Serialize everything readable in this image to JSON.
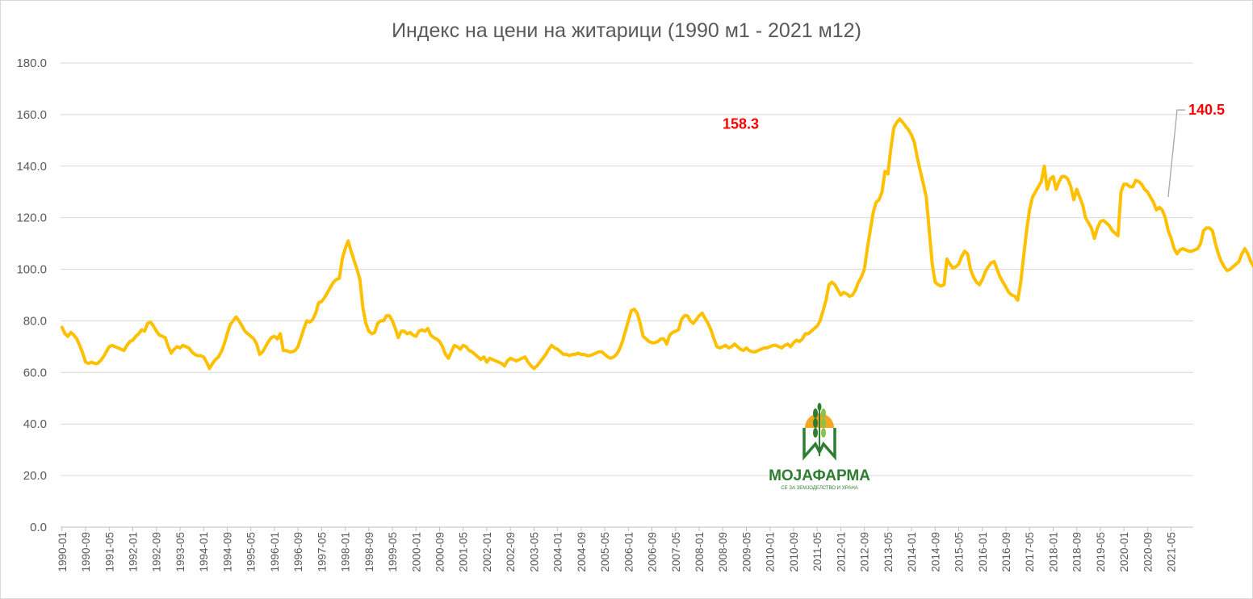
{
  "chart_data": {
    "type": "line",
    "title": "Индекс на цени на житарици (1990 м1 - 2021 м12)",
    "xlabel": "",
    "ylabel": "",
    "ylim": [
      0,
      180
    ],
    "yticks": [
      "0.0",
      "20.0",
      "40.0",
      "60.0",
      "80.0",
      "100.0",
      "120.0",
      "140.0",
      "160.0",
      "180.0"
    ],
    "xticks": [
      "1990-01",
      "1990-09",
      "1991-05",
      "1992-01",
      "1992-09",
      "1993-05",
      "1994-01",
      "1994-09",
      "1995-05",
      "1996-01",
      "1996-09",
      "1997-05",
      "1998-01",
      "1998-09",
      "1999-05",
      "2000-01",
      "2000-09",
      "2001-05",
      "2002-01",
      "2002-09",
      "2003-05",
      "2004-01",
      "2004-09",
      "2005-05",
      "2006-01",
      "2006-09",
      "2007-05",
      "2008-01",
      "2008-09",
      "2009-05",
      "2010-01",
      "2010-09",
      "2011-05",
      "2012-01",
      "2012-09",
      "2013-05",
      "2014-01",
      "2014-09",
      "2015-05",
      "2016-01",
      "2016-09",
      "2017-05",
      "2018-01",
      "2018-09",
      "2019-05",
      "2020-01",
      "2020-09",
      "2021-05"
    ],
    "grid": true,
    "legend": "none",
    "line_color": "#ffc000",
    "start_month": "1990-01",
    "series": [
      {
        "values": [
          77.5,
          75,
          74,
          75.5,
          74.5,
          73,
          70.5,
          67.5,
          64,
          63.5,
          64,
          63.5,
          63.5,
          64.5,
          66,
          68,
          70,
          70.5,
          70,
          69.5,
          69,
          68.5,
          70.5,
          72,
          72.5,
          74,
          75,
          76.5,
          76,
          79,
          79.5,
          78,
          76,
          74.5,
          74,
          73.5,
          70,
          67.5,
          69,
          70,
          69.5,
          70.5,
          70,
          69.5,
          68,
          67,
          66.5,
          66.5,
          66,
          64,
          61.5,
          63.5,
          65,
          66,
          68,
          71,
          75,
          78.5,
          80,
          81.5,
          80,
          78,
          76,
          75,
          74,
          73,
          71,
          67,
          68,
          70,
          72,
          73.5,
          74,
          73,
          75,
          68.5,
          68.5,
          68,
          68,
          68.5,
          70,
          73.5,
          77,
          80,
          79.5,
          80.5,
          83,
          87,
          87.5,
          89,
          91,
          93,
          95,
          96,
          96.5,
          104,
          108,
          111,
          107,
          103.5,
          100,
          96,
          85,
          79,
          76,
          75,
          75.5,
          79,
          80,
          80,
          82,
          82,
          80,
          77,
          73.5,
          76,
          76,
          75,
          75.5,
          74.5,
          74,
          76,
          76.5,
          76,
          77,
          74.5,
          73.5,
          73,
          72,
          70,
          67,
          65.5,
          68,
          70.5,
          70,
          69,
          70.5,
          70,
          68.5,
          68,
          67,
          66,
          65,
          66,
          64,
          65.5,
          65,
          64.5,
          64,
          63.5,
          62.5,
          64.5,
          65.5,
          65,
          64.5,
          65,
          65.5,
          66,
          64,
          62.5,
          61.5,
          62.5,
          64,
          65.5,
          67,
          69,
          70.5,
          69.5,
          69,
          68,
          67,
          67,
          66.5,
          67,
          67,
          67.5,
          67,
          67,
          66.5,
          66.5,
          67,
          67.5,
          68,
          68,
          67,
          66,
          65.5,
          66,
          67,
          69,
          72,
          76,
          80,
          84,
          84.5,
          83,
          79,
          74,
          73,
          72,
          71.5,
          71.5,
          72,
          73,
          73,
          71,
          74.5,
          75.5,
          76,
          76.5,
          80.5,
          82,
          82,
          80,
          79,
          80.5,
          82,
          83,
          81,
          79,
          76.5,
          73,
          70,
          69.5,
          70,
          70.5,
          69.5,
          70,
          71,
          70,
          69,
          68.5,
          69.5,
          68.5,
          68,
          68,
          68.5,
          69,
          69.5,
          69.5,
          70,
          70.5,
          70.5,
          70,
          69.5,
          70.5,
          71,
          70,
          71.5,
          72.5,
          72,
          73,
          75,
          75,
          76,
          77,
          78,
          80,
          84,
          88,
          94,
          95,
          94,
          92,
          90,
          91,
          90.5,
          89.5,
          90,
          92,
          95,
          97,
          100,
          108,
          115,
          122,
          126,
          127,
          130,
          138,
          137,
          147,
          155,
          157,
          158.3,
          157,
          155.5,
          154,
          152,
          149,
          143,
          138,
          133,
          128,
          115,
          102,
          95,
          94,
          93.5,
          94,
          104,
          102,
          100.5,
          101,
          102,
          105,
          107,
          106,
          100,
          97,
          95,
          94,
          96,
          99,
          101,
          102.5,
          103,
          100,
          97,
          95,
          93,
          91,
          90,
          89.5,
          88,
          95,
          105,
          115,
          123,
          128,
          130,
          132,
          134,
          140,
          131,
          135,
          136,
          131,
          134,
          136,
          136,
          135,
          132,
          127,
          131,
          128,
          125,
          120,
          118,
          116,
          112,
          116,
          118.5,
          119,
          118,
          117,
          115,
          114,
          113,
          130,
          133,
          133,
          132,
          132,
          134.5,
          134,
          133,
          131,
          130,
          128,
          126,
          123,
          124,
          123,
          120,
          115,
          112,
          108,
          106,
          107.5,
          108,
          107.5,
          107,
          107,
          107.5,
          108,
          110,
          115,
          116,
          116,
          115,
          110,
          106,
          103,
          101,
          99.5,
          100,
          101,
          102,
          103,
          106,
          108,
          106,
          103,
          101,
          100,
          98,
          99,
          100,
          101,
          96,
          94,
          93,
          92.5,
          93,
          92,
          91.5,
          92,
          93,
          92.5,
          92.5,
          92,
          93,
          95,
          97,
          99.5,
          98,
          96,
          95.5,
          92.5,
          92,
          92,
          91.5,
          91.5,
          91.5,
          91,
          91,
          91,
          92,
          91,
          90,
          89.5,
          90,
          91,
          95,
          98,
          99.5,
          96,
          95,
          94.5,
          94.5,
          94.5,
          95,
          95,
          94.5,
          94,
          96,
          98,
          100,
          101,
          102,
          103,
          103.5,
          100,
          98,
          97,
          100,
          101,
          100,
          99,
          99,
          100,
          101,
          102,
          101,
          99,
          97,
          96,
          95,
          96.5,
          99,
          98,
          96,
          93,
          92.5,
          93,
          95,
          97,
          97,
          99,
          100,
          101.5,
          100,
          99.5,
          100,
          99,
          98.5,
          98,
          98,
          98.5,
          100,
          103,
          107,
          112,
          115,
          117,
          119,
          123,
          125,
          124,
          122,
          124,
          127,
          133,
          131,
          128,
          124,
          130,
          131,
          132,
          134,
          137,
          140,
          141,
          140.5
        ]
      }
    ],
    "annotations": [
      {
        "text": "158.3",
        "x": "2008-04",
        "value": 158.3
      },
      {
        "text": "140.5",
        "x": "2021-12",
        "value": 140.5
      }
    ]
  },
  "logo": {
    "name": "МОЈАФАРМА",
    "tagline": "СЕ ЗА ЗЕМЈОДЕЛСТВО И ХРАНА",
    "colors": {
      "green": "#2e7d32",
      "light_green": "#8bc34a",
      "orange": "#f5a623"
    }
  }
}
